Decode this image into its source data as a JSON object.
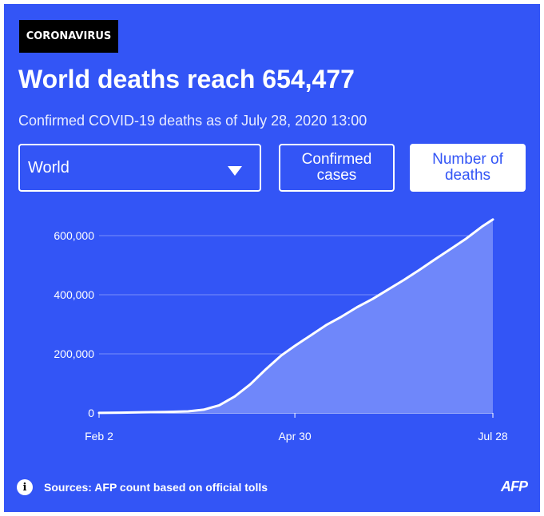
{
  "badge": "CORONAVIRUS",
  "title": "World deaths reach 654,477",
  "subtitle": "Confirmed COVID-19 deaths as of July 28, 2020 13:00",
  "controls": {
    "region_selected": "World",
    "button_confirmed": "Confirmed cases",
    "button_deaths": "Number of deaths"
  },
  "footer": {
    "source": "Sources: AFP count based on official tolls",
    "logo": "AFP"
  },
  "colors": {
    "background": "#3355f6",
    "area_fill": "#6f87fa",
    "line": "#ffffff"
  },
  "chart_data": {
    "type": "area",
    "x_ticks": [
      "Feb 2",
      "Apr 30",
      "Jul 28"
    ],
    "y_ticks": [
      "0",
      "200,000",
      "400,000",
      "600,000"
    ],
    "ylim": [
      0,
      654477
    ],
    "grid": true,
    "x": [
      "2020-02-02",
      "2020-02-12",
      "2020-02-22",
      "2020-03-03",
      "2020-03-13",
      "2020-03-20",
      "2020-03-27",
      "2020-04-03",
      "2020-04-10",
      "2020-04-17",
      "2020-04-24",
      "2020-04-30",
      "2020-05-07",
      "2020-05-14",
      "2020-05-21",
      "2020-05-28",
      "2020-06-04",
      "2020-06-11",
      "2020-06-18",
      "2020-06-25",
      "2020-07-02",
      "2020-07-09",
      "2020-07-16",
      "2020-07-23",
      "2020-07-28"
    ],
    "values": [
      360,
      1110,
      2460,
      3200,
      5400,
      11000,
      26000,
      56000,
      97000,
      148000,
      195000,
      227000,
      262000,
      297000,
      326000,
      358000,
      386000,
      418000,
      450000,
      484000,
      520000,
      555000,
      590000,
      630000,
      654477
    ]
  }
}
